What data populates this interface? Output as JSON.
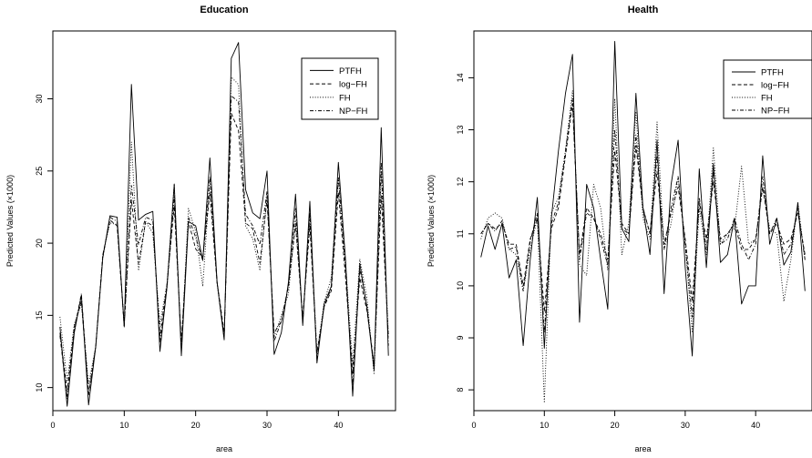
{
  "chart_data": [
    {
      "type": "line",
      "title": "Education",
      "xlabel": "area",
      "ylabel": "Predicted Values (×1000)",
      "xlim": [
        0,
        48
      ],
      "ylim": [
        8.4,
        34.7
      ],
      "xticks": [
        0,
        10,
        20,
        30,
        40
      ],
      "yticks": [
        10,
        15,
        20,
        25,
        30
      ],
      "legend_position": "top-right",
      "x": [
        1,
        2,
        3,
        4,
        5,
        6,
        7,
        8,
        9,
        10,
        11,
        12,
        13,
        14,
        15,
        16,
        17,
        18,
        19,
        20,
        21,
        22,
        23,
        24,
        25,
        26,
        27,
        28,
        29,
        30,
        31,
        32,
        33,
        34,
        35,
        36,
        37,
        38,
        39,
        40,
        41,
        42,
        43,
        44,
        45,
        46,
        47
      ],
      "series": [
        {
          "name": "PTFH",
          "style": "solid",
          "values": [
            14.2,
            8.7,
            13.8,
            16.4,
            8.8,
            12.8,
            19.0,
            21.9,
            21.8,
            14.2,
            31.0,
            21.6,
            22.0,
            22.2,
            12.5,
            17.0,
            24.1,
            12.2,
            21.5,
            21.2,
            18.8,
            25.9,
            17.3,
            13.3,
            32.8,
            33.9,
            23.7,
            22.1,
            21.7,
            25.0,
            12.3,
            13.8,
            17.3,
            23.4,
            14.3,
            22.9,
            11.7,
            15.8,
            17.0,
            25.6,
            18.8,
            9.4,
            18.6,
            15.5,
            11.2,
            28.0,
            12.2
          ]
        },
        {
          "name": "log−FH",
          "style": "dashed",
          "values": [
            13.8,
            9.7,
            14.2,
            16.0,
            9.6,
            12.8,
            19.2,
            21.6,
            21.2,
            14.3,
            23.0,
            18.6,
            21.5,
            21.2,
            13.6,
            17.2,
            22.6,
            13.1,
            21.5,
            19.6,
            19.0,
            23.5,
            17.3,
            13.8,
            29.0,
            27.8,
            21.4,
            21.0,
            18.6,
            23.0,
            13.8,
            14.6,
            17.0,
            21.3,
            14.8,
            21.2,
            12.4,
            15.6,
            16.7,
            23.5,
            17.6,
            11.0,
            17.6,
            15.3,
            11.6,
            23.3,
            13.5
          ]
        },
        {
          "name": "FH",
          "style": "dotted",
          "values": [
            14.9,
            10.4,
            14.4,
            15.8,
            10.2,
            12.8,
            19.2,
            21.4,
            21.3,
            14.4,
            27.0,
            18.1,
            21.5,
            20.7,
            14.4,
            17.2,
            24.1,
            12.6,
            22.4,
            20.8,
            17.0,
            24.4,
            17.2,
            13.4,
            31.5,
            31.0,
            21.2,
            20.3,
            18.1,
            23.3,
            13.5,
            15.0,
            16.5,
            21.6,
            14.7,
            22.1,
            12.4,
            15.9,
            17.6,
            24.6,
            18.6,
            11.6,
            18.9,
            16.2,
            10.9,
            24.8,
            13.6
          ]
        },
        {
          "name": "NP−FH",
          "style": "dashdot",
          "values": [
            13.6,
            9.2,
            14.0,
            16.5,
            9.5,
            12.8,
            19.0,
            21.8,
            21.5,
            14.2,
            24.0,
            19.9,
            21.8,
            21.6,
            13.1,
            17.0,
            23.2,
            12.8,
            21.8,
            20.4,
            18.8,
            24.6,
            17.3,
            13.5,
            30.2,
            29.8,
            22.0,
            21.2,
            19.9,
            23.6,
            13.2,
            14.6,
            17.1,
            22.4,
            14.5,
            22.0,
            12.0,
            15.6,
            16.9,
            24.5,
            18.2,
            10.2,
            18.2,
            15.6,
            11.4,
            25.6,
            12.9
          ]
        }
      ]
    },
    {
      "type": "line",
      "title": "Health",
      "xlabel": "area",
      "ylabel": "Predicted Values (×1000)",
      "xlim": [
        0,
        48
      ],
      "ylim": [
        7.6,
        14.9
      ],
      "xticks": [
        0,
        10,
        20,
        30,
        40
      ],
      "yticks": [
        8,
        9,
        10,
        11,
        12,
        13,
        14
      ],
      "legend_position": "top-right",
      "x": [
        1,
        2,
        3,
        4,
        5,
        6,
        7,
        8,
        9,
        10,
        11,
        12,
        13,
        14,
        15,
        16,
        17,
        18,
        19,
        20,
        21,
        22,
        23,
        24,
        25,
        26,
        27,
        28,
        29,
        30,
        31,
        32,
        33,
        34,
        35,
        36,
        37,
        38,
        39,
        40,
        41,
        42,
        43,
        44,
        45,
        46,
        47
      ],
      "series": [
        {
          "name": "PTFH",
          "style": "solid",
          "values": [
            10.55,
            11.15,
            10.7,
            11.2,
            10.15,
            10.5,
            8.85,
            10.5,
            11.7,
            8.8,
            11.3,
            12.6,
            13.7,
            14.45,
            9.3,
            11.95,
            11.5,
            10.5,
            9.55,
            14.7,
            11.1,
            10.85,
            13.7,
            11.5,
            10.6,
            12.8,
            9.85,
            11.95,
            12.8,
            10.35,
            8.65,
            12.25,
            10.35,
            12.35,
            10.45,
            10.6,
            11.3,
            9.65,
            10.0,
            10.0,
            12.5,
            10.8,
            11.3,
            10.4,
            10.65,
            11.6,
            9.9
          ]
        },
        {
          "name": "log−FH",
          "style": "dashed",
          "values": [
            11.0,
            11.2,
            11.1,
            11.2,
            10.8,
            10.8,
            10.0,
            10.9,
            11.3,
            9.5,
            11.1,
            11.5,
            12.5,
            13.5,
            10.6,
            11.5,
            11.3,
            11.0,
            10.5,
            12.6,
            11.2,
            11.0,
            12.7,
            11.5,
            11.0,
            12.2,
            10.8,
            11.4,
            11.9,
            10.9,
            9.7,
            11.6,
            10.9,
            12.0,
            10.9,
            11.0,
            11.2,
            10.7,
            10.7,
            10.9,
            11.9,
            11.0,
            11.2,
            10.8,
            10.9,
            11.4,
            10.6
          ]
        },
        {
          "name": "FH",
          "style": "dotted",
          "values": [
            10.9,
            11.3,
            11.4,
            11.3,
            10.7,
            10.6,
            9.9,
            10.7,
            11.3,
            7.75,
            11.4,
            11.7,
            12.6,
            13.75,
            10.4,
            10.2,
            11.95,
            11.5,
            10.3,
            13.6,
            10.6,
            11.2,
            13.35,
            11.3,
            10.9,
            13.15,
            10.7,
            11.2,
            12.1,
            10.8,
            9.1,
            11.5,
            10.6,
            12.65,
            10.8,
            11.0,
            11.1,
            12.3,
            10.8,
            10.9,
            11.9,
            11.1,
            11.0,
            9.7,
            10.5,
            11.6,
            10.5
          ]
        },
        {
          "name": "NP−FH",
          "style": "dashdot",
          "values": [
            11.0,
            11.2,
            11.05,
            11.25,
            10.7,
            10.75,
            9.9,
            10.85,
            11.4,
            9.1,
            11.2,
            11.6,
            12.6,
            13.6,
            10.5,
            11.4,
            11.3,
            10.9,
            10.4,
            13.0,
            11.1,
            11.0,
            12.9,
            11.5,
            11.0,
            12.5,
            10.7,
            11.5,
            12.1,
            10.8,
            9.4,
            11.7,
            10.7,
            12.2,
            10.8,
            10.9,
            11.3,
            10.8,
            10.5,
            10.8,
            12.1,
            11.0,
            11.3,
            10.6,
            10.8,
            11.5,
            10.5
          ]
        }
      ]
    }
  ]
}
